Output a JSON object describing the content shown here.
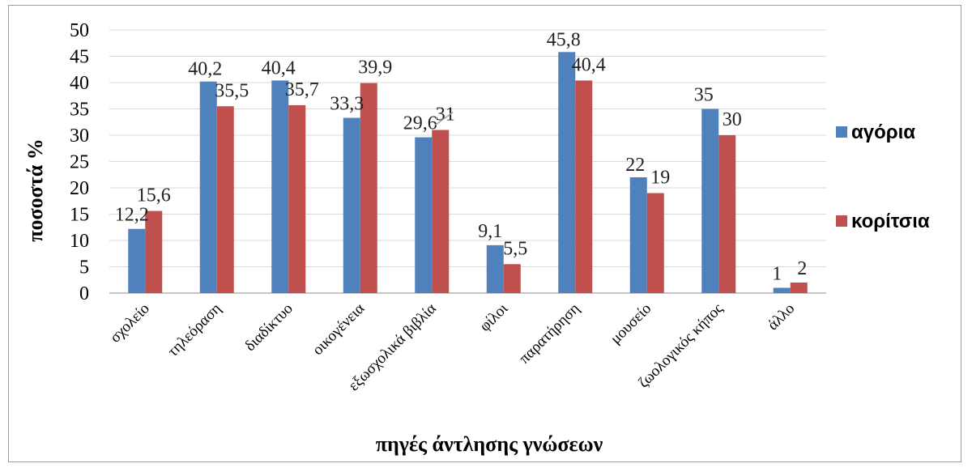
{
  "chart_data": {
    "type": "bar",
    "categories": [
      "σχολείο",
      "τηλεόραση",
      "διαδίκτυο",
      "οικογένεια",
      "εξωσχολικά βιβλία",
      "φίλοι",
      "παρατήρηση",
      "μουσείο",
      "ζωολογικός κήπος",
      "άλλο"
    ],
    "series": [
      {
        "name": "αγόρια",
        "color": "#4f81bd",
        "values": [
          12.2,
          40.2,
          40.4,
          33.3,
          29.6,
          9.1,
          45.8,
          22,
          35,
          1
        ],
        "labels": [
          "12,2",
          "40,2",
          "40,4",
          "33,3",
          "29,6",
          "9,1",
          "45,8",
          "22",
          "35",
          "1"
        ]
      },
      {
        "name": "κορίτσια",
        "color": "#c0504d",
        "values": [
          15.6,
          35.5,
          35.7,
          39.9,
          31,
          5.5,
          40.4,
          19,
          30,
          2
        ],
        "labels": [
          "15,6",
          "35,5",
          "35,7",
          "39,9",
          "31",
          "5,5",
          "40,4",
          "19",
          "30",
          "2"
        ]
      }
    ],
    "xlabel": "πηγές άντλησης γνώσεων",
    "ylabel": "ποσοστά %",
    "ylim": [
      0,
      50
    ],
    "yticks": [
      "0",
      "5",
      "10",
      "15",
      "20",
      "25",
      "30",
      "35",
      "40",
      "45",
      "50"
    ],
    "grid": true,
    "legend_position": "right"
  }
}
